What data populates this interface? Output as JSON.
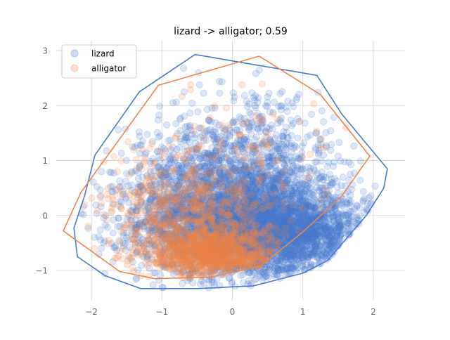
{
  "chart_data": {
    "type": "scatter",
    "title": "lizard -> alligator; 0.59",
    "xlabel": "",
    "ylabel": "",
    "xlim": [
      -2.5,
      2.45
    ],
    "ylim": [
      -1.55,
      3.18
    ],
    "x_ticks": [
      -2,
      -1,
      0,
      1,
      2
    ],
    "y_ticks": [
      -1,
      0,
      1,
      2,
      3
    ],
    "x_tick_labels": [
      "−2",
      "−1",
      "0",
      "1",
      "2"
    ],
    "y_tick_labels": [
      "−1",
      "0",
      "1",
      "2",
      "3"
    ],
    "grid": true,
    "legend_position": "upper-left",
    "series": [
      {
        "name": "lizard",
        "color": "#4878cf",
        "marker": "circle-translucent",
        "hull": [
          [
            -0.53,
            2.93
          ],
          [
            1.2,
            2.55
          ],
          [
            1.55,
            1.85
          ],
          [
            2.2,
            0.85
          ],
          [
            2.15,
            0.5
          ],
          [
            1.9,
            0.0
          ],
          [
            1.35,
            -0.82
          ],
          [
            1.0,
            -1.05
          ],
          [
            0.3,
            -1.28
          ],
          [
            -0.5,
            -1.33
          ],
          [
            -1.3,
            -1.33
          ],
          [
            -1.8,
            -1.1
          ],
          [
            -2.2,
            -0.75
          ],
          [
            -2.25,
            -0.23
          ],
          [
            -2.1,
            0.35
          ],
          [
            -1.95,
            1.1
          ],
          [
            -1.32,
            2.25
          ],
          [
            -0.53,
            2.93
          ]
        ],
        "clusters": [
          {
            "cx": 0.2,
            "cy": -0.1,
            "sx": 0.75,
            "sy": 0.55,
            "n": 2600
          },
          {
            "cx": 0.9,
            "cy": -0.35,
            "sx": 0.5,
            "sy": 0.35,
            "n": 1200
          },
          {
            "cx": -0.1,
            "cy": 0.6,
            "sx": 0.6,
            "sy": 0.6,
            "n": 700
          },
          {
            "cx": 0.4,
            "cy": 1.4,
            "sx": 0.6,
            "sy": 0.55,
            "n": 260
          },
          {
            "cx": -0.9,
            "cy": 0.3,
            "sx": 0.55,
            "sy": 0.6,
            "n": 300
          }
        ]
      },
      {
        "name": "alligator",
        "color": "#ee854a",
        "marker": "circle-translucent",
        "hull": [
          [
            0.38,
            2.9
          ],
          [
            1.25,
            2.2
          ],
          [
            1.95,
            1.08
          ],
          [
            1.55,
            0.35
          ],
          [
            1.0,
            -0.3
          ],
          [
            0.4,
            -0.92
          ],
          [
            -0.3,
            -1.12
          ],
          [
            -1.1,
            -1.15
          ],
          [
            -1.6,
            -1.02
          ],
          [
            -2.4,
            -0.28
          ],
          [
            -2.15,
            0.42
          ],
          [
            -1.05,
            2.37
          ],
          [
            0.38,
            2.9
          ]
        ],
        "clusters": [
          {
            "cx": -0.3,
            "cy": -0.7,
            "sx": 0.45,
            "sy": 0.22,
            "n": 900
          },
          {
            "cx": -0.5,
            "cy": -0.2,
            "sx": 0.55,
            "sy": 0.45,
            "n": 500
          },
          {
            "cx": -0.9,
            "cy": 0.4,
            "sx": 0.5,
            "sy": 0.55,
            "n": 180
          },
          {
            "cx": 0.1,
            "cy": 1.0,
            "sx": 0.6,
            "sy": 0.7,
            "n": 140
          }
        ]
      }
    ]
  }
}
